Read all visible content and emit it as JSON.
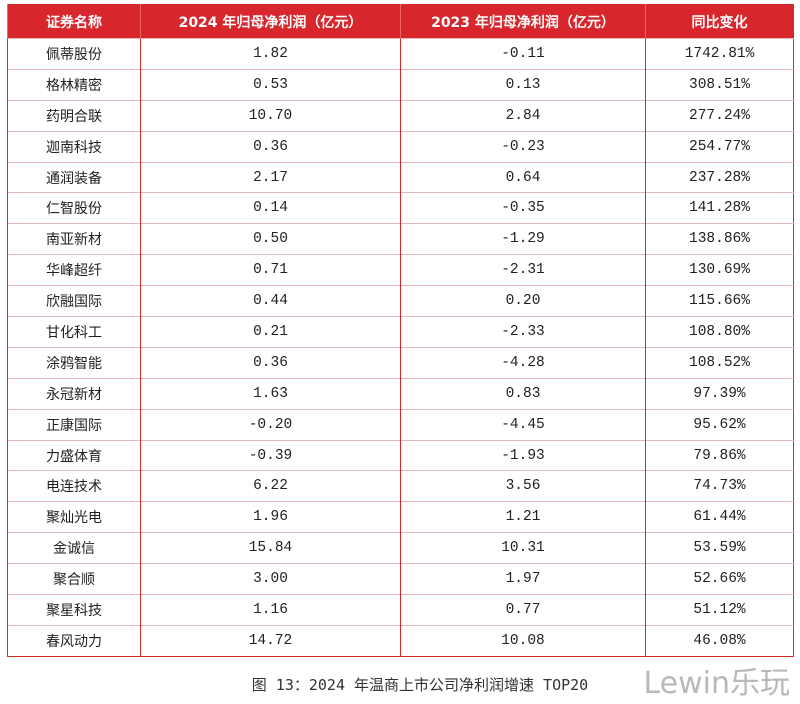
{
  "table": {
    "header": [
      "证券名称",
      "2024 年归母净利润（亿元）",
      "2023 年归母净利润（亿元）",
      "同比变化"
    ],
    "rows": [
      [
        "佩蒂股份",
        "1.82",
        "-0.11",
        "1742.81%"
      ],
      [
        "格林精密",
        "0.53",
        "0.13",
        "308.51%"
      ],
      [
        "药明合联",
        "10.70",
        "2.84",
        "277.24%"
      ],
      [
        "迦南科技",
        "0.36",
        "-0.23",
        "254.77%"
      ],
      [
        "通润装备",
        "2.17",
        "0.64",
        "237.28%"
      ],
      [
        "仁智股份",
        "0.14",
        "-0.35",
        "141.28%"
      ],
      [
        "南亚新材",
        "0.50",
        "-1.29",
        "138.86%"
      ],
      [
        "华峰超纤",
        "0.71",
        "-2.31",
        "130.69%"
      ],
      [
        "欣融国际",
        "0.44",
        "0.20",
        "115.66%"
      ],
      [
        "甘化科工",
        "0.21",
        "-2.33",
        "108.80%"
      ],
      [
        "涂鸦智能",
        "0.36",
        "-4.28",
        "108.52%"
      ],
      [
        "永冠新材",
        "1.63",
        "0.83",
        "97.39%"
      ],
      [
        "正康国际",
        "-0.20",
        "-4.45",
        "95.62%"
      ],
      [
        "力盛体育",
        "-0.39",
        "-1.93",
        "79.86%"
      ],
      [
        "电连技术",
        "6.22",
        "3.56",
        "74.73%"
      ],
      [
        "聚灿光电",
        "1.96",
        "1.21",
        "61.44%"
      ],
      [
        "金诚信",
        "15.84",
        "10.31",
        "53.59%"
      ],
      [
        "聚合顺",
        "3.00",
        "1.97",
        "52.66%"
      ],
      [
        "聚星科技",
        "1.16",
        "0.77",
        "51.12%"
      ],
      [
        "春风动力",
        "14.72",
        "10.08",
        "46.08%"
      ]
    ]
  },
  "caption": "图 13：2024 年温商上市公司净利润增速 TOP20",
  "watermark": "Lewin乐玩"
}
